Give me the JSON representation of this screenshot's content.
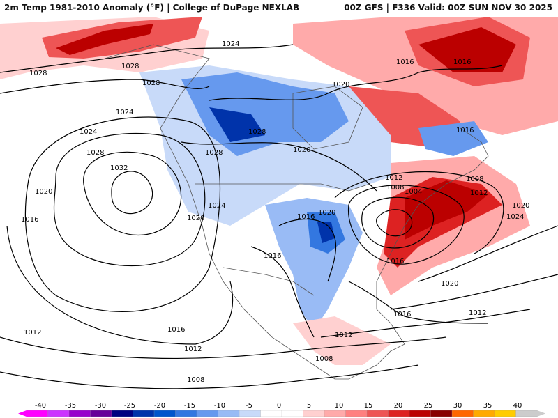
{
  "header": {
    "title_left": "2m Temp 1981-2010 Anomaly (°F) | College of DuPage NEXLAB",
    "title_right": "00Z GFS | F336 Valid: 00Z SUN NOV 30 2025"
  },
  "colorbar": {
    "ticks": [
      "-40",
      "-35",
      "-30",
      "-25",
      "-20",
      "-15",
      "-10",
      "-5",
      "0",
      "5",
      "10",
      "15",
      "20",
      "25",
      "30",
      "35",
      "40"
    ],
    "colors": [
      "#ff00ff",
      "#cc33ff",
      "#9900cc",
      "#660099",
      "#000080",
      "#0033aa",
      "#0055cc",
      "#3377e0",
      "#6699ee",
      "#99bbf5",
      "#c8daf9",
      "#ffffff",
      "#ffffff",
      "#ffd0d0",
      "#ffaaaa",
      "#ff8080",
      "#ee5555",
      "#dd2222",
      "#bb0000",
      "#880000",
      "#ff6600",
      "#ffaa00",
      "#ffcc00",
      "#cccccc"
    ]
  },
  "map": {
    "isobar_labels": [
      {
        "id": "l1024a",
        "text": "1024"
      },
      {
        "id": "l1028a",
        "text": "1028"
      },
      {
        "id": "l1028b",
        "text": "1028"
      },
      {
        "id": "l1028c",
        "text": "1028"
      },
      {
        "id": "l1024b",
        "text": "1024"
      },
      {
        "id": "l1024c",
        "text": "1024"
      },
      {
        "id": "l1028d",
        "text": "1028"
      },
      {
        "id": "l1032",
        "text": "1032"
      },
      {
        "id": "l1020a",
        "text": "1020"
      },
      {
        "id": "l1016a",
        "text": "1016"
      },
      {
        "id": "l1028e",
        "text": "1028"
      },
      {
        "id": "l1028f",
        "text": "1028"
      },
      {
        "id": "l1020b",
        "text": "1020"
      },
      {
        "id": "l1020c",
        "text": "1020"
      },
      {
        "id": "l1024d",
        "text": "1024"
      },
      {
        "id": "l1020d",
        "text": "1020"
      },
      {
        "id": "l1016b",
        "text": "1016"
      },
      {
        "id": "l1020e",
        "text": "1020"
      },
      {
        "id": "l1016c",
        "text": "1016"
      },
      {
        "id": "l1016d",
        "text": "1016"
      },
      {
        "id": "l1016e",
        "text": "1016"
      },
      {
        "id": "l1016f",
        "text": "1016"
      },
      {
        "id": "l1012a",
        "text": "1012"
      },
      {
        "id": "l1008a",
        "text": "1008"
      },
      {
        "id": "l1004",
        "text": "1004"
      },
      {
        "id": "l1008b",
        "text": "1008"
      },
      {
        "id": "l1012b",
        "text": "1012"
      },
      {
        "id": "l1020f",
        "text": "1020"
      },
      {
        "id": "l1024e",
        "text": "1024"
      },
      {
        "id": "l1016g",
        "text": "1016"
      },
      {
        "id": "l1020g",
        "text": "1020"
      },
      {
        "id": "l1016h",
        "text": "1016"
      },
      {
        "id": "l1012c",
        "text": "1012"
      },
      {
        "id": "l1012d",
        "text": "1012"
      },
      {
        "id": "l1016i",
        "text": "1016"
      },
      {
        "id": "l1012e",
        "text": "1012"
      },
      {
        "id": "l1012f",
        "text": "1012"
      },
      {
        "id": "l1008c",
        "text": "1008"
      },
      {
        "id": "l1008d",
        "text": "1008"
      }
    ]
  }
}
